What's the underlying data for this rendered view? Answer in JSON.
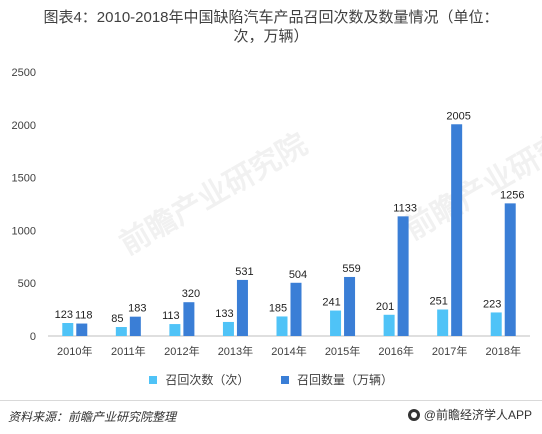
{
  "title_lines": [
    "图表4：2010-2018年中国缺陷汽车产品召回次数及数量情况（单位：",
    "次，万辆）"
  ],
  "watermark": "前瞻产业研究院",
  "source": "资料来源：前瞻产业研究院整理",
  "brand": "@前瞻经济学人APP",
  "colors": {
    "series1": "#4fc3f7",
    "series2": "#3a7ed6",
    "axis": "#bfbfbf",
    "grid": "#e6e6e6",
    "text": "#404040"
  },
  "chart_data": {
    "type": "bar",
    "categories": [
      "2010年",
      "2011年",
      "2012年",
      "2013年",
      "2014年",
      "2015年",
      "2016年",
      "2017年",
      "2018年"
    ],
    "series": [
      {
        "name": "召回次数（次）",
        "values": [
          123,
          85,
          113,
          133,
          185,
          241,
          201,
          251,
          223
        ]
      },
      {
        "name": "召回数量（万辆）",
        "values": [
          118,
          183,
          320,
          531,
          504,
          559,
          1133,
          2005,
          1256
        ]
      }
    ],
    "yticks": [
      0,
      500,
      1000,
      1500,
      2000,
      2500
    ],
    "ylim": [
      0,
      2500
    ],
    "grid": false,
    "legend": "bottom",
    "xlabel": "",
    "ylabel": ""
  }
}
